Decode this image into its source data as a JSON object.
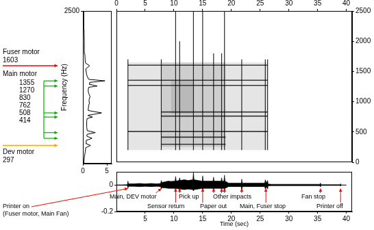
{
  "chart_data": [
    {
      "type": "line",
      "y_label": "Frequency (Hz)",
      "frequencies": [
        0,
        100,
        200,
        260,
        297,
        330,
        380,
        414,
        450,
        480,
        508,
        540,
        600,
        700,
        740,
        762,
        790,
        830,
        870,
        950,
        1000,
        1050,
        1100,
        1150,
        1200,
        1250,
        1270,
        1300,
        1330,
        1355,
        1380,
        1450,
        1550,
        1603,
        1650,
        1800,
        2000,
        2200,
        2500
      ],
      "values": [
        0.2,
        0.3,
        0.5,
        0.6,
        1.6,
        0.6,
        0.7,
        1.9,
        0.8,
        0.9,
        2.6,
        0.9,
        0.8,
        0.8,
        0.9,
        2.0,
        1.0,
        3.9,
        1.1,
        1.2,
        1.4,
        1.3,
        1.5,
        1.2,
        1.1,
        1.2,
        3.0,
        1.3,
        1.4,
        4.6,
        1.2,
        0.8,
        0.6,
        1.4,
        0.5,
        0.4,
        0.3,
        0.25,
        0.2
      ],
      "xlim": [
        0,
        6
      ],
      "xticks": [
        0,
        5
      ],
      "ylim": [
        0,
        2500
      ],
      "yticks": [
        2500
      ],
      "color": "#000000",
      "annotations": [
        {
          "label": "Fuser motor",
          "frequencies": [
            1603
          ],
          "color": "#ff0000"
        },
        {
          "label": "Main motor",
          "frequencies": [
            1355,
            1270,
            830,
            762,
            508,
            414
          ],
          "color": "#00b000"
        },
        {
          "label": "Dev motor",
          "frequencies": [
            297
          ],
          "color": "#ffa500"
        }
      ]
    },
    {
      "type": "spectrogram",
      "xlim": [
        0,
        41
      ],
      "xticks": [
        0,
        5,
        10,
        15,
        20,
        25,
        30,
        35,
        40
      ],
      "ylim": [
        0,
        2500
      ],
      "yticks": [
        0,
        500,
        1000,
        1500,
        2000,
        2500
      ],
      "color": "#000000",
      "regions": [
        {
          "start": 2,
          "end": 26.3,
          "low": 200,
          "high": 1650
        },
        {
          "start": 7.8,
          "end": 19,
          "low": 250,
          "high": 1650
        },
        {
          "start": 9.5,
          "end": 13.5,
          "low": 800,
          "high": 1350
        }
      ],
      "bands": [
        {
          "frequency": 1603,
          "start": 2,
          "end": 26.3
        },
        {
          "frequency": 1355,
          "start": 2,
          "end": 26.3
        },
        {
          "frequency": 1270,
          "start": 2,
          "end": 26.3
        },
        {
          "frequency": 830,
          "start": 7.8,
          "end": 26.3
        },
        {
          "frequency": 762,
          "start": 7.8,
          "end": 26.3
        },
        {
          "frequency": 508,
          "start": 2,
          "end": 26.3
        },
        {
          "frequency": 414,
          "start": 7.8,
          "end": 19
        },
        {
          "frequency": 297,
          "start": 7.8,
          "end": 19
        }
      ],
      "events": [
        {
          "time": 2,
          "low": 200,
          "high": 1700
        },
        {
          "time": 7.8,
          "low": 200,
          "high": 1700
        },
        {
          "time": 10.3,
          "low": 200,
          "high": 2500
        },
        {
          "time": 11,
          "low": 200,
          "high": 2000
        },
        {
          "time": 13.4,
          "low": 200,
          "high": 2500
        },
        {
          "time": 15,
          "low": 200,
          "high": 2500
        },
        {
          "time": 16.9,
          "low": 200,
          "high": 1800
        },
        {
          "time": 18.3,
          "low": 200,
          "high": 1800
        },
        {
          "time": 18.8,
          "low": 200,
          "high": 2500
        },
        {
          "time": 21.8,
          "low": 200,
          "high": 1700
        },
        {
          "time": 25.9,
          "low": 200,
          "high": 1700
        },
        {
          "time": 26.3,
          "low": 200,
          "high": 1700
        }
      ]
    },
    {
      "type": "area",
      "x_label": "Time (sec)",
      "xlim": [
        0,
        41
      ],
      "xticks": [
        5,
        10,
        15,
        20,
        25,
        30,
        35,
        40
      ],
      "ylim": [
        -0.2,
        0.1
      ],
      "yticks": [
        -0.2,
        0
      ],
      "color": "#000000",
      "x": [
        0,
        1,
        1.9,
        2,
        2.1,
        3,
        4,
        5,
        6,
        7,
        7.7,
        7.8,
        7.9,
        8.5,
        9,
        9.5,
        10.2,
        10.3,
        10.4,
        10.9,
        11,
        11.1,
        11.8,
        12.5,
        13.3,
        13.4,
        13.5,
        14.2,
        14.9,
        15,
        15.1,
        16,
        16.8,
        16.9,
        17,
        17.7,
        18.2,
        18.3,
        18.4,
        18.7,
        18.8,
        18.9,
        19.5,
        20.5,
        21.7,
        21.8,
        21.9,
        23,
        24.5,
        25.8,
        25.9,
        26.1,
        26.3,
        26.4,
        27,
        29,
        31,
        33,
        35.4,
        35.5,
        35.6,
        37,
        38.9,
        39,
        39.1,
        40
      ],
      "upper": [
        0.002,
        0.002,
        0.003,
        0.03,
        0.01,
        0.01,
        0.012,
        0.01,
        0.012,
        0.01,
        0.012,
        0.035,
        0.02,
        0.025,
        0.03,
        0.028,
        0.03,
        0.065,
        0.03,
        0.035,
        0.055,
        0.035,
        0.04,
        0.035,
        0.04,
        0.1,
        0.04,
        0.035,
        0.03,
        0.07,
        0.03,
        0.03,
        0.03,
        0.06,
        0.03,
        0.03,
        0.03,
        0.055,
        0.03,
        0.03,
        0.075,
        0.03,
        0.015,
        0.015,
        0.015,
        0.045,
        0.015,
        0.015,
        0.015,
        0.015,
        0.04,
        0.015,
        0.035,
        0.008,
        0.006,
        0.006,
        0.006,
        0.006,
        0.006,
        0.015,
        0.003,
        0.003,
        0.003,
        0.01,
        0.001,
        0.001
      ],
      "lower": [
        -0.002,
        -0.002,
        -0.003,
        -0.025,
        -0.01,
        -0.01,
        -0.012,
        -0.01,
        -0.012,
        -0.01,
        -0.012,
        -0.03,
        -0.02,
        -0.022,
        -0.025,
        -0.025,
        -0.025,
        -0.045,
        -0.025,
        -0.03,
        -0.04,
        -0.03,
        -0.035,
        -0.03,
        -0.035,
        -0.045,
        -0.035,
        -0.03,
        -0.025,
        -0.045,
        -0.025,
        -0.025,
        -0.025,
        -0.04,
        -0.025,
        -0.025,
        -0.025,
        -0.04,
        -0.025,
        -0.025,
        -0.045,
        -0.025,
        -0.012,
        -0.012,
        -0.012,
        -0.035,
        -0.012,
        -0.012,
        -0.012,
        -0.012,
        -0.03,
        -0.012,
        -0.03,
        -0.006,
        -0.005,
        -0.005,
        -0.005,
        -0.005,
        -0.005,
        -0.012,
        -0.003,
        -0.003,
        -0.003,
        -0.008,
        -0.001,
        -0.001
      ],
      "annotations": [
        {
          "lines": [
            "Printer on",
            "(Fuser motor, Main Fan)"
          ],
          "times": [
            2
          ]
        },
        {
          "lines": [
            "Main, DEV motor"
          ],
          "times": [
            7.8
          ]
        },
        {
          "lines": [
            "Sensor return"
          ],
          "times": [
            10.3
          ]
        },
        {
          "lines": [
            "Pick up"
          ],
          "times": [
            11
          ]
        },
        {
          "lines": [
            "Paper out"
          ],
          "times": [
            15
          ]
        },
        {
          "lines": [
            "Other impacts"
          ],
          "times": [
            16.9,
            18.3,
            18.8,
            21.8
          ]
        },
        {
          "lines": [
            "Main, Fuser stop"
          ],
          "times": [
            26
          ]
        },
        {
          "lines": [
            "Fan stop"
          ],
          "times": [
            35.5
          ]
        },
        {
          "lines": [
            "Printer off"
          ],
          "times": [
            39
          ]
        }
      ]
    }
  ]
}
